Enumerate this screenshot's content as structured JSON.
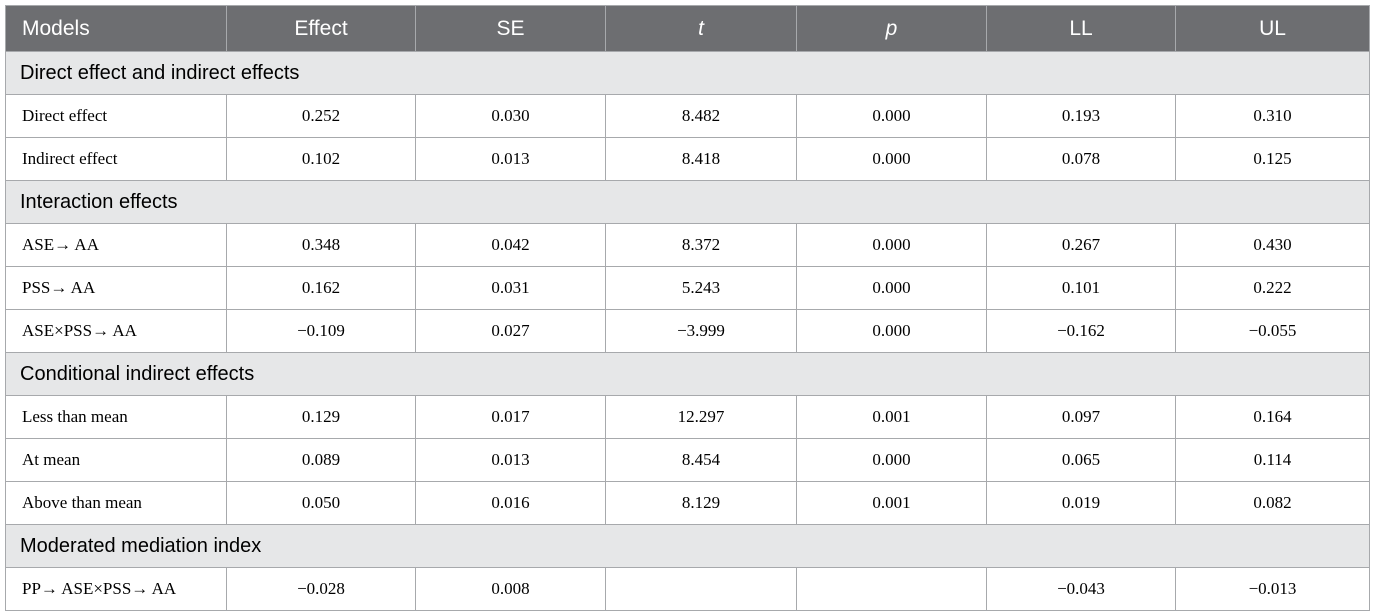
{
  "table": {
    "header": [
      "Models",
      "Effect",
      "SE",
      "t",
      "p",
      "LL",
      "UL"
    ],
    "sections": [
      {
        "title": "Direct effect and indirect effects",
        "rows": [
          [
            "Direct effect",
            "0.252",
            "0.030",
            "8.482",
            "0.000",
            "0.193",
            "0.310"
          ],
          [
            "Indirect effect",
            "0.102",
            "0.013",
            "8.418",
            "0.000",
            "0.078",
            "0.125"
          ]
        ]
      },
      {
        "title": "Interaction effects",
        "rows": [
          [
            "ASE→ AA",
            "0.348",
            "0.042",
            "8.372",
            "0.000",
            "0.267",
            "0.430"
          ],
          [
            "PSS→ AA",
            "0.162",
            "0.031",
            "5.243",
            "0.000",
            "0.101",
            "0.222"
          ],
          [
            "ASE×PSS→ AA",
            "−0.109",
            "0.027",
            "−3.999",
            "0.000",
            "−0.162",
            "−0.055"
          ]
        ]
      },
      {
        "title": "Conditional indirect effects",
        "rows": [
          [
            "Less than mean",
            "0.129",
            "0.017",
            "12.297",
            "0.001",
            "0.097",
            "0.164"
          ],
          [
            "At mean",
            "0.089",
            "0.013",
            "8.454",
            "0.000",
            "0.065",
            "0.114"
          ],
          [
            "Above than mean",
            "0.050",
            "0.016",
            "8.129",
            "0.001",
            "0.019",
            "0.082"
          ]
        ]
      },
      {
        "title": "Moderated mediation index",
        "rows": [
          [
            "PP→ ASE×PSS→ AA",
            "−0.028",
            "0.008",
            null,
            null,
            "−0.043",
            "−0.013"
          ]
        ]
      }
    ]
  }
}
